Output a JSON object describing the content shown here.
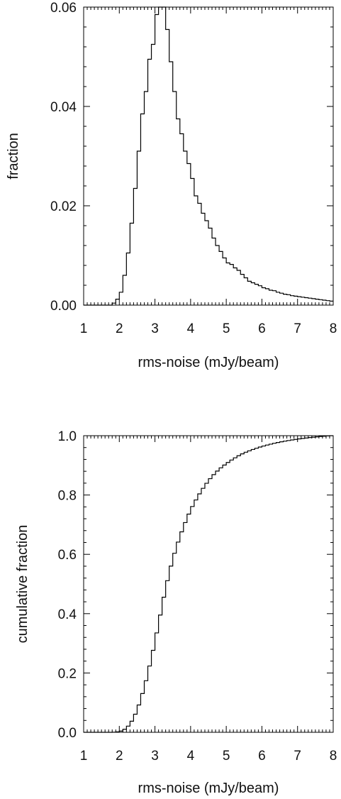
{
  "chart_data": [
    {
      "type": "histogram-step",
      "title": "",
      "xlabel": "rms-noise (mJy/beam)",
      "ylabel": "fraction",
      "xlim": [
        1,
        8
      ],
      "ylim": [
        0,
        0.06
      ],
      "xticks": [
        "1",
        "2",
        "3",
        "4",
        "5",
        "6",
        "7",
        "8"
      ],
      "yticks": [
        "0.00",
        "0.02",
        "0.04",
        "0.06"
      ],
      "bin_width": 0.1,
      "bin_start": 1.0,
      "values": [
        0,
        0,
        0,
        0,
        0,
        0,
        0,
        0,
        0.0004,
        0.0012,
        0.0026,
        0.006,
        0.0105,
        0.0165,
        0.0235,
        0.031,
        0.0385,
        0.043,
        0.0495,
        0.0525,
        0.0585,
        0.06,
        0.06,
        0.0555,
        0.049,
        0.043,
        0.0375,
        0.0345,
        0.031,
        0.0285,
        0.0255,
        0.022,
        0.0205,
        0.0185,
        0.017,
        0.0155,
        0.0135,
        0.012,
        0.0108,
        0.0095,
        0.0085,
        0.0082,
        0.0075,
        0.007,
        0.0062,
        0.0055,
        0.0048,
        0.0045,
        0.0042,
        0.0039,
        0.0035,
        0.0033,
        0.003,
        0.0029,
        0.0026,
        0.0024,
        0.0022,
        0.0021,
        0.0019,
        0.0018,
        0.0017,
        0.0016,
        0.0015,
        0.0014,
        0.0013,
        0.0012,
        0.0011,
        0.001,
        0.0009,
        0.0008
      ]
    },
    {
      "type": "cumulative-step",
      "title": "",
      "xlabel": "rms-noise (mJy/beam)",
      "ylabel": "cumulative fraction",
      "xlim": [
        1,
        8
      ],
      "ylim": [
        0,
        1.0
      ],
      "xticks": [
        "1",
        "2",
        "3",
        "4",
        "5",
        "6",
        "7",
        "8"
      ],
      "yticks": [
        "0.0",
        "0.2",
        "0.4",
        "0.6",
        "0.8",
        "1.0"
      ]
    }
  ]
}
